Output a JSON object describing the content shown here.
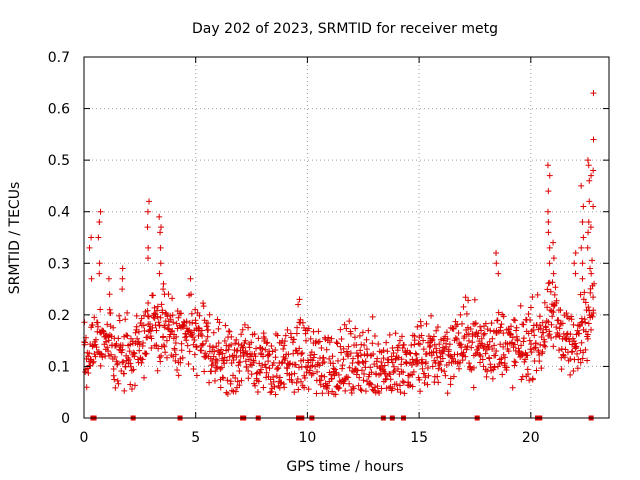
{
  "chart_data": {
    "type": "scatter",
    "title": "Day 202 of 2023, SRMTID for receiver metg",
    "xlabel": "GPS time / hours",
    "ylabel": "SRMTID / TECUs",
    "xlim": [
      0,
      23.5
    ],
    "ylim": [
      0,
      0.7
    ],
    "grid": true,
    "x_ticks": [
      0,
      5,
      10,
      15,
      20
    ],
    "x_tick_labels": [
      "0",
      "5",
      "10",
      "15",
      "20"
    ],
    "y_ticks": [
      0,
      0.1,
      0.2,
      0.3,
      0.4,
      0.5,
      0.6,
      0.7
    ],
    "y_tick_labels": [
      "0",
      "0.1",
      "0.2",
      "0.3",
      "0.4",
      "0.5",
      "0.6",
      "0.7"
    ],
    "marker_color": "#dd0000",
    "marker": "+",
    "points_per_hour": 60,
    "trend": [
      [
        0.0,
        0.12
      ],
      [
        0.5,
        0.16
      ],
      [
        1.0,
        0.14
      ],
      [
        1.5,
        0.13
      ],
      [
        2.0,
        0.12
      ],
      [
        2.5,
        0.15
      ],
      [
        3.0,
        0.19
      ],
      [
        3.5,
        0.17
      ],
      [
        4.0,
        0.15
      ],
      [
        4.5,
        0.16
      ],
      [
        5.0,
        0.16
      ],
      [
        5.5,
        0.14
      ],
      [
        6.0,
        0.12
      ],
      [
        6.5,
        0.11
      ],
      [
        7.0,
        0.12
      ],
      [
        7.5,
        0.13
      ],
      [
        8.0,
        0.11
      ],
      [
        8.5,
        0.1
      ],
      [
        9.0,
        0.1
      ],
      [
        9.5,
        0.12
      ],
      [
        10.0,
        0.12
      ],
      [
        10.5,
        0.11
      ],
      [
        11.0,
        0.1
      ],
      [
        11.5,
        0.1
      ],
      [
        12.0,
        0.11
      ],
      [
        12.5,
        0.11
      ],
      [
        13.0,
        0.1
      ],
      [
        13.5,
        0.1
      ],
      [
        14.0,
        0.1
      ],
      [
        14.5,
        0.11
      ],
      [
        15.0,
        0.12
      ],
      [
        15.5,
        0.12
      ],
      [
        16.0,
        0.13
      ],
      [
        16.5,
        0.13
      ],
      [
        17.0,
        0.15
      ],
      [
        17.5,
        0.15
      ],
      [
        18.0,
        0.13
      ],
      [
        18.5,
        0.15
      ],
      [
        19.0,
        0.14
      ],
      [
        19.5,
        0.13
      ],
      [
        20.0,
        0.15
      ],
      [
        20.5,
        0.16
      ],
      [
        21.0,
        0.2
      ],
      [
        21.5,
        0.16
      ],
      [
        22.0,
        0.13
      ],
      [
        22.5,
        0.2
      ],
      [
        22.8,
        0.25
      ]
    ],
    "spikes": [
      {
        "x": 0.3,
        "values": [
          0.27,
          0.35,
          0.33
        ]
      },
      {
        "x": 0.7,
        "values": [
          0.3,
          0.38,
          0.4,
          0.35,
          0.28
        ]
      },
      {
        "x": 1.1,
        "values": [
          0.24,
          0.27,
          0.21
        ]
      },
      {
        "x": 1.7,
        "values": [
          0.29,
          0.27,
          0.25
        ]
      },
      {
        "x": 2.9,
        "values": [
          0.42,
          0.4,
          0.33,
          0.31,
          0.37
        ]
      },
      {
        "x": 3.4,
        "values": [
          0.39,
          0.37,
          0.36,
          0.33,
          0.3,
          0.28
        ]
      },
      {
        "x": 3.6,
        "values": [
          0.26,
          0.24,
          0.25
        ]
      },
      {
        "x": 4.8,
        "values": [
          0.27,
          0.24
        ]
      },
      {
        "x": 9.6,
        "values": [
          0.23,
          0.22
        ]
      },
      {
        "x": 18.5,
        "values": [
          0.32,
          0.3,
          0.28
        ]
      },
      {
        "x": 20.8,
        "values": [
          0.49,
          0.47,
          0.44,
          0.4,
          0.38,
          0.36,
          0.33,
          0.3
        ]
      },
      {
        "x": 21.0,
        "values": [
          0.34,
          0.31,
          0.28
        ]
      },
      {
        "x": 22.0,
        "values": [
          0.28,
          0.32,
          0.3
        ]
      },
      {
        "x": 22.3,
        "values": [
          0.45,
          0.41,
          0.38,
          0.35,
          0.33,
          0.3,
          0.27
        ]
      },
      {
        "x": 22.6,
        "values": [
          0.5,
          0.49,
          0.46,
          0.42,
          0.38,
          0.36,
          0.33,
          0.29
        ]
      },
      {
        "x": 22.75,
        "values": [
          0.63,
          0.54,
          0.48,
          0.47,
          0.41,
          0.37,
          0.28
        ]
      }
    ],
    "baseline_markers": [
      0.4,
      0.45,
      2.2,
      4.3,
      7.1,
      7.15,
      7.8,
      9.6,
      9.75,
      10.2,
      13.4,
      13.8,
      14.3,
      17.6,
      20.3,
      20.4,
      22.7
    ]
  }
}
